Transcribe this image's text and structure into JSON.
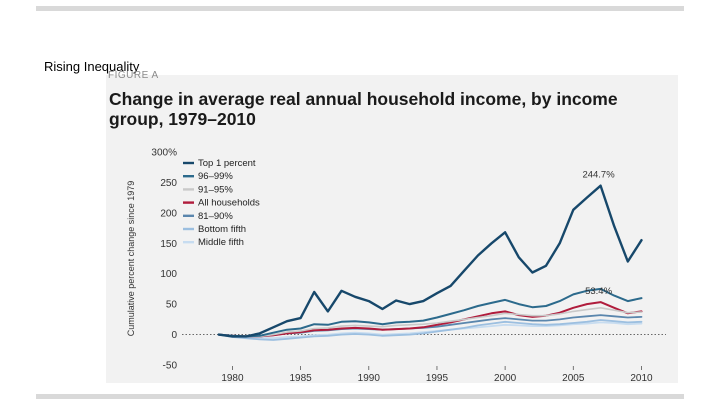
{
  "slide": {
    "title": "Rising Inequality"
  },
  "figure": {
    "label": "FIGURE A"
  },
  "chart_data": {
    "type": "line",
    "title": "Change in average real annual household income, by income group, 1979–2010",
    "ylabel": "Cumulative percent change since 1979",
    "xlabel": "",
    "xlim": [
      1976.3,
      2011.8
    ],
    "ylim": [
      -50,
      300
    ],
    "x_ticks": [
      1980,
      1985,
      1990,
      1995,
      2000,
      2005,
      2010
    ],
    "x_tick_labels": [
      "1980",
      "1985",
      "1990",
      "1995",
      "2000",
      "2005",
      "2010"
    ],
    "y_ticks": [
      -50,
      0,
      50,
      100,
      150,
      200,
      250,
      300
    ],
    "y_tick_labels": [
      "-50",
      "0",
      "50",
      "100",
      "150",
      "200",
      "250",
      "300%"
    ],
    "legend_position": "top-left",
    "x": [
      1979,
      1980,
      1981,
      1982,
      1983,
      1984,
      1985,
      1986,
      1987,
      1988,
      1989,
      1990,
      1991,
      1992,
      1993,
      1994,
      1995,
      1996,
      1997,
      1998,
      1999,
      2000,
      2001,
      2002,
      2003,
      2004,
      2005,
      2006,
      2007,
      2008,
      2009,
      2010
    ],
    "series": [
      {
        "name": "Top 1 percent",
        "color": "#17486b",
        "width": 2.4,
        "values": [
          0,
          -3,
          -3,
          2,
          12,
          22,
          27,
          70,
          38,
          72,
          62,
          55,
          42,
          56,
          50,
          55,
          68,
          80,
          105,
          130,
          150,
          168,
          127,
          102,
          113,
          150,
          205,
          225,
          244.7,
          178,
          120,
          155
        ]
      },
      {
        "name": "96–99%",
        "color": "#2c6a8c",
        "width": 2.0,
        "values": [
          0,
          -2,
          -3,
          -2,
          3,
          8,
          10,
          17,
          16,
          21,
          22,
          20,
          17,
          20,
          21,
          23,
          28,
          34,
          40,
          47,
          52,
          57,
          50,
          45,
          47,
          55,
          66,
          72,
          75,
          64,
          55,
          60
        ]
      },
      {
        "name": "91–95%",
        "color": "#c9c9c9",
        "width": 1.6,
        "values": [
          0,
          -2,
          -3,
          -3,
          0,
          4,
          6,
          10,
          11,
          14,
          15,
          14,
          13,
          15,
          16,
          17,
          19,
          22,
          25,
          28,
          31,
          35,
          33,
          31,
          31,
          34,
          38,
          41,
          44,
          40,
          36,
          37
        ]
      },
      {
        "name": "All households",
        "color": "#b01c3c",
        "width": 2.0,
        "values": [
          0,
          -2,
          -3,
          -3,
          -1,
          2,
          4,
          7,
          8,
          10,
          11,
          10,
          8,
          9,
          10,
          12,
          16,
          20,
          25,
          30,
          35,
          38,
          32,
          29,
          31,
          36,
          44,
          50,
          53.4,
          44,
          35,
          38
        ]
      },
      {
        "name": "81–90%",
        "color": "#5a86ad",
        "width": 1.8,
        "values": [
          0,
          -2,
          -3,
          -3,
          -1,
          2,
          3,
          6,
          7,
          9,
          10,
          9,
          8,
          9,
          10,
          11,
          13,
          16,
          19,
          22,
          25,
          27,
          25,
          23,
          23,
          25,
          28,
          30,
          32,
          30,
          28,
          29
        ]
      },
      {
        "name": "Bottom fifth",
        "color": "#9cbfe0",
        "width": 1.8,
        "values": [
          0,
          -4,
          -6,
          -8,
          -9,
          -7,
          -5,
          -3,
          -2,
          0,
          1,
          0,
          -2,
          -1,
          0,
          2,
          5,
          8,
          11,
          15,
          18,
          21,
          19,
          17,
          16,
          17,
          19,
          21,
          24,
          22,
          20,
          21
        ]
      },
      {
        "name": "Middle fifth",
        "color": "#c7dcf0",
        "width": 1.8,
        "values": [
          0,
          -3,
          -5,
          -6,
          -6,
          -4,
          -3,
          -1,
          0,
          2,
          3,
          2,
          0,
          1,
          2,
          4,
          6,
          8,
          10,
          12,
          14,
          16,
          15,
          14,
          14,
          15,
          17,
          18,
          20,
          19,
          17,
          18
        ]
      }
    ],
    "annotations": [
      {
        "text": "244.7%",
        "x": 2007,
        "y": 244.7
      },
      {
        "text": "53.4%",
        "x": 2007,
        "y": 53.4
      }
    ]
  }
}
